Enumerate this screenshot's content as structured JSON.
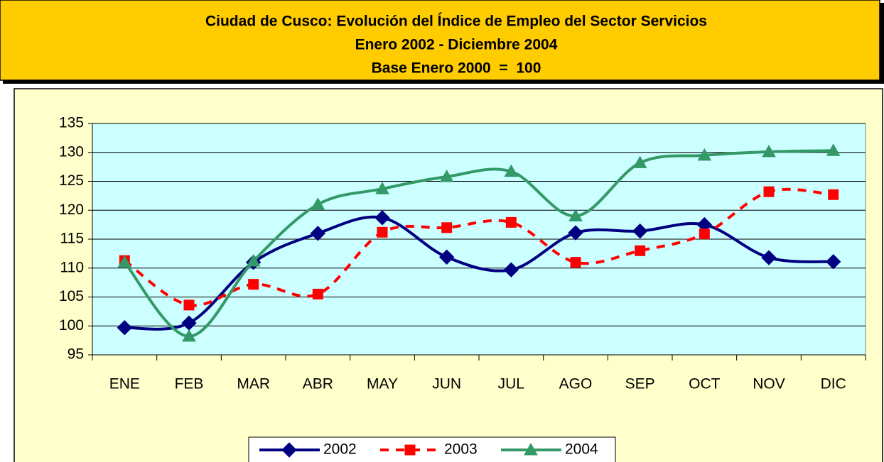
{
  "chart_data": {
    "type": "line",
    "title": "Ciudad de Cusco: Evolución del Índice de Empleo del Sector Servicios",
    "subtitle": "Enero 2002 - Diciembre 2004",
    "note": "Base Enero 2000  =  100",
    "categories": [
      "ENE",
      "FEB",
      "MAR",
      "ABR",
      "MAY",
      "JUN",
      "JUL",
      "AGO",
      "SEP",
      "OCT",
      "NOV",
      "DIC"
    ],
    "series": [
      {
        "name": "2002",
        "color": "#000080",
        "marker": "diamond",
        "dashed": false,
        "values": [
          99.7,
          100.5,
          111.0,
          116.0,
          118.7,
          111.9,
          109.7,
          116.1,
          116.4,
          117.5,
          111.8,
          111.1
        ]
      },
      {
        "name": "2003",
        "color": "#FF0000",
        "marker": "square",
        "dashed": true,
        "values": [
          111.3,
          103.6,
          107.2,
          105.5,
          116.2,
          117.0,
          117.9,
          111.0,
          113.0,
          115.9,
          123.2,
          122.7
        ]
      },
      {
        "name": "2004",
        "color": "#339966",
        "marker": "triangle",
        "dashed": false,
        "values": [
          111.0,
          98.2,
          111.2,
          121.0,
          123.7,
          125.8,
          126.7,
          119.0,
          128.2,
          129.5,
          130.1,
          130.3
        ]
      }
    ],
    "ylim": [
      95,
      135
    ],
    "yticks": [
      95,
      100,
      105,
      110,
      115,
      120,
      125,
      130,
      135
    ],
    "grid": true,
    "smooth": true,
    "legend": "bottom"
  }
}
